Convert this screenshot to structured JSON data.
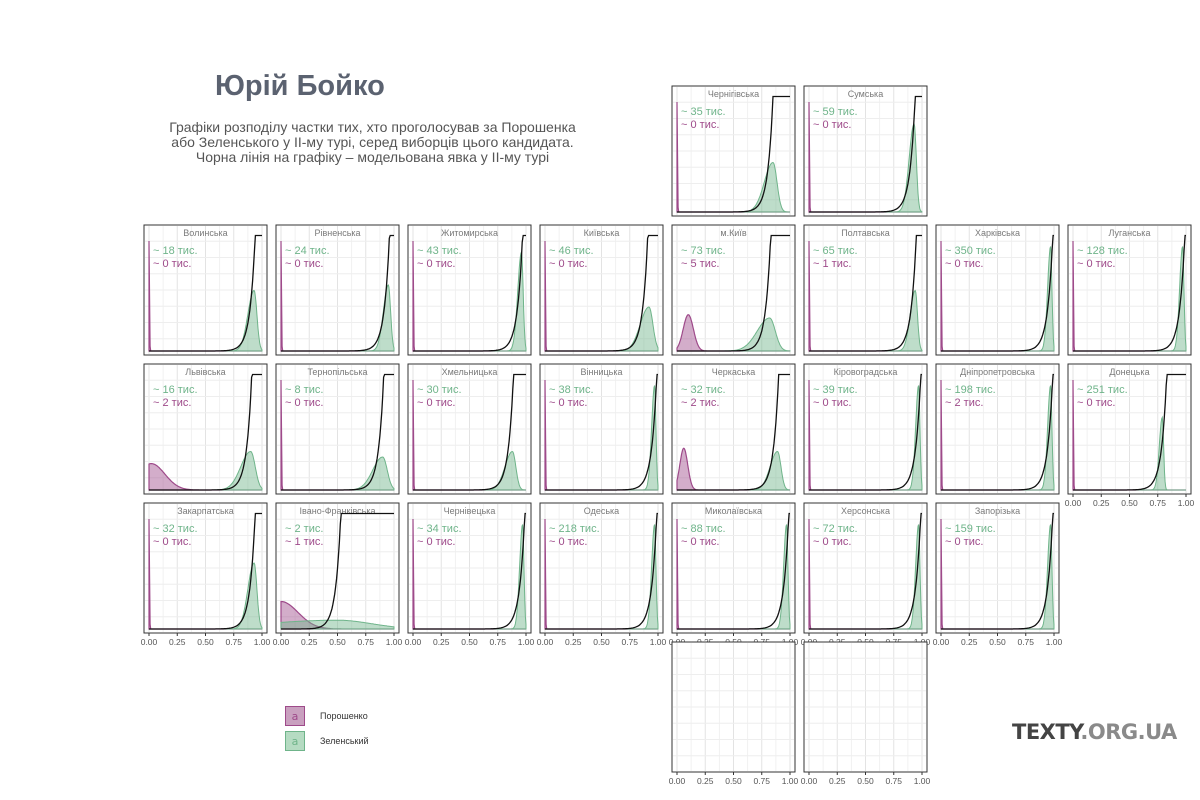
{
  "title": "Юрій Бойко",
  "subtitle": [
    "Графіки розподілу частки тих, хто проголосував за Порошенка",
    "або Зеленського у ІІ-му турі, серед виборців цього кандидата.",
    "Чорна лінія на графіку – модельована явка у ІІ-му турі"
  ],
  "legend": [
    {
      "label": "Порошенко",
      "key_text": "a",
      "color": "#9e4a8a"
    },
    {
      "label": "Зеленський",
      "key_text": "a",
      "color": "#6fb48a"
    }
  ],
  "logo": {
    "main": "TEXTY",
    "suffix": ".ORG.UA"
  },
  "colors": {
    "poroshenko": "#9e4a8a",
    "zelensky": "#6fb48a",
    "turnout": "#111111"
  },
  "chart_data": {
    "type": "area",
    "facet": "small-multiples by region",
    "x_ticks": [
      "0.00",
      "0.25",
      "0.50",
      "0.75",
      "1.00"
    ],
    "xlim": [
      0,
      1
    ],
    "series_names": [
      "Порошенко",
      "Зеленський"
    ],
    "unit": "тис.",
    "panels": [
      {
        "region": "Чернігівська",
        "zel": "~ 35  тис.",
        "por": "~ 0  тис.",
        "z_peak": 0.85,
        "z_w": 0.035,
        "z_h": 0.45,
        "p_peak": 0.0,
        "p_w": 0.004,
        "p_h": 1.0,
        "turn": 0.82
      },
      {
        "region": "Сумська",
        "zel": "~ 59  тис.",
        "por": "~ 0  тис.",
        "z_peak": 0.93,
        "z_w": 0.02,
        "z_h": 0.8,
        "p_peak": 0.0,
        "p_w": 0.004,
        "p_h": 1.0,
        "turn": 0.91
      },
      {
        "region": "Волинська",
        "zel": "~ 18  тис.",
        "por": "~ 0  тис.",
        "z_peak": 0.93,
        "z_w": 0.025,
        "z_h": 0.55,
        "p_peak": 0.0,
        "p_w": 0.004,
        "p_h": 1.0,
        "turn": 0.91
      },
      {
        "region": "Рівненська",
        "zel": "~ 24  тис.",
        "por": "~ 0  тис.",
        "z_peak": 0.95,
        "z_w": 0.02,
        "z_h": 0.6,
        "p_peak": 0.0,
        "p_w": 0.004,
        "p_h": 1.0,
        "turn": 0.93
      },
      {
        "region": "Житомирська",
        "zel": "~ 43  тис.",
        "por": "~ 0  тис.",
        "z_peak": 0.96,
        "z_w": 0.015,
        "z_h": 0.9,
        "p_peak": 0.0,
        "p_w": 0.004,
        "p_h": 1.0,
        "turn": 0.94
      },
      {
        "region": "Київська",
        "zel": "~ 46  тис.",
        "por": "~ 0  тис.",
        "z_peak": 0.92,
        "z_w": 0.035,
        "z_h": 0.4,
        "p_peak": 0.0,
        "p_w": 0.004,
        "p_h": 1.0,
        "turn": 0.88
      },
      {
        "region": "м.Київ",
        "zel": "~ 73  тис.",
        "por": "~ 5  тис.",
        "z_peak": 0.82,
        "z_w": 0.05,
        "z_h": 0.3,
        "p_peak": 0.1,
        "p_w": 0.045,
        "p_h": 0.33,
        "turn": 0.8
      },
      {
        "region": "Полтавська",
        "zel": "~ 65  тис.",
        "por": "~ 1  тис.",
        "z_peak": 0.94,
        "z_w": 0.02,
        "z_h": 0.55,
        "p_peak": 0.0,
        "p_w": 0.004,
        "p_h": 1.0,
        "turn": 0.92
      },
      {
        "region": "Харківська",
        "zel": "~ 350  тис.",
        "por": "~ 0  тис.",
        "z_peak": 0.97,
        "z_w": 0.012,
        "z_h": 0.95,
        "p_peak": 0.0,
        "p_w": 0.004,
        "p_h": 1.0,
        "turn": 0.96
      },
      {
        "region": "Луганська",
        "zel": "~ 128  тис.",
        "por": "~ 0  тис.",
        "z_peak": 0.97,
        "z_w": 0.012,
        "z_h": 0.95,
        "p_peak": 0.0,
        "p_w": 0.004,
        "p_h": 1.0,
        "turn": 0.96
      },
      {
        "region": "Львівська",
        "zel": "~ 16  тис.",
        "por": "~ 2  тис.",
        "z_peak": 0.9,
        "z_w": 0.04,
        "z_h": 0.35,
        "p_peak": 0.02,
        "p_w": 0.12,
        "p_h": 0.24,
        "turn": 0.88
      },
      {
        "region": "Тернопільська",
        "zel": "~ 8  тис.",
        "por": "~ 0  тис.",
        "z_peak": 0.9,
        "z_w": 0.04,
        "z_h": 0.3,
        "p_peak": 0.0,
        "p_w": 0.004,
        "p_h": 1.0,
        "turn": 0.88
      },
      {
        "region": "Хмельницька",
        "zel": "~ 30  тис.",
        "por": "~ 0  тис.",
        "z_peak": 0.88,
        "z_w": 0.03,
        "z_h": 0.35,
        "p_peak": 0.0,
        "p_w": 0.004,
        "p_h": 1.0,
        "turn": 0.86
      },
      {
        "region": "Вінницька",
        "zel": "~ 38  тис.",
        "por": "~ 0  тис.",
        "z_peak": 0.97,
        "z_w": 0.012,
        "z_h": 0.95,
        "p_peak": 0.0,
        "p_w": 0.004,
        "p_h": 1.0,
        "turn": 0.96
      },
      {
        "region": "Черкаська",
        "zel": "~ 32  тис.",
        "por": "~ 2  тис.",
        "z_peak": 0.89,
        "z_w": 0.03,
        "z_h": 0.35,
        "p_peak": 0.06,
        "p_w": 0.035,
        "p_h": 0.38,
        "turn": 0.87
      },
      {
        "region": "Кіровоградська",
        "zel": "~ 39  тис.",
        "por": "~ 0  тис.",
        "z_peak": 0.97,
        "z_w": 0.012,
        "z_h": 0.95,
        "p_peak": 0.0,
        "p_w": 0.004,
        "p_h": 1.0,
        "turn": 0.96
      },
      {
        "region": "Дніпропетровська",
        "zel": "~ 198  тис.",
        "por": "~ 2  тис.",
        "z_peak": 0.97,
        "z_w": 0.012,
        "z_h": 0.95,
        "p_peak": 0.0,
        "p_w": 0.004,
        "p_h": 1.0,
        "turn": 0.96
      },
      {
        "region": "Донецька",
        "zel": "~ 251  тис.",
        "por": "~ 0  тис.",
        "z_peak": 0.79,
        "z_w": 0.012,
        "z_h": 0.66,
        "p_peak": 0.0,
        "p_w": 0.004,
        "p_h": 1.0,
        "turn": 0.8
      },
      {
        "region": "Закарпатська",
        "zel": "~ 32  тис.",
        "por": "~ 0  тис.",
        "z_peak": 0.93,
        "z_w": 0.025,
        "z_h": 0.6,
        "p_peak": 0.0,
        "p_w": 0.004,
        "p_h": 1.0,
        "turn": 0.91
      },
      {
        "region": "Івано-Франківська",
        "zel": "~ 2  тис.",
        "por": "~ 1  тис.",
        "z_peak": 0.5,
        "z_w": 0.3,
        "z_h": 0.08,
        "p_peak": 0.0,
        "p_w": 0.15,
        "p_h": 0.25,
        "turn": 0.5
      },
      {
        "region": "Чернівецька",
        "zel": "~ 34  тис.",
        "por": "~ 0  тис.",
        "z_peak": 0.97,
        "z_w": 0.012,
        "z_h": 0.95,
        "p_peak": 0.0,
        "p_w": 0.004,
        "p_h": 1.0,
        "turn": 0.96
      },
      {
        "region": "Одеська",
        "zel": "~ 218  тис.",
        "por": "~ 0  тис.",
        "z_peak": 0.97,
        "z_w": 0.012,
        "z_h": 0.95,
        "p_peak": 0.0,
        "p_w": 0.004,
        "p_h": 1.0,
        "turn": 0.96
      },
      {
        "region": "Миколаївська",
        "zel": "~ 88  тис.",
        "por": "~ 0  тис.",
        "z_peak": 0.97,
        "z_w": 0.012,
        "z_h": 0.95,
        "p_peak": 0.0,
        "p_w": 0.004,
        "p_h": 1.0,
        "turn": 0.96
      },
      {
        "region": "Херсонська",
        "zel": "~ 72  тис.",
        "por": "~ 0  тис.",
        "z_peak": 0.97,
        "z_w": 0.012,
        "z_h": 0.95,
        "p_peak": 0.0,
        "p_w": 0.004,
        "p_h": 1.0,
        "turn": 0.96
      },
      {
        "region": "Запорізька",
        "zel": "~ 159  тис.",
        "por": "~ 0  тис.",
        "z_peak": 0.97,
        "z_w": 0.012,
        "z_h": 0.95,
        "p_peak": 0.0,
        "p_w": 0.004,
        "p_h": 1.0,
        "turn": 0.96
      },
      {
        "region": "",
        "zel": "",
        "por": "",
        "empty": true
      },
      {
        "region": "",
        "zel": "",
        "por": "",
        "empty": true
      }
    ]
  }
}
